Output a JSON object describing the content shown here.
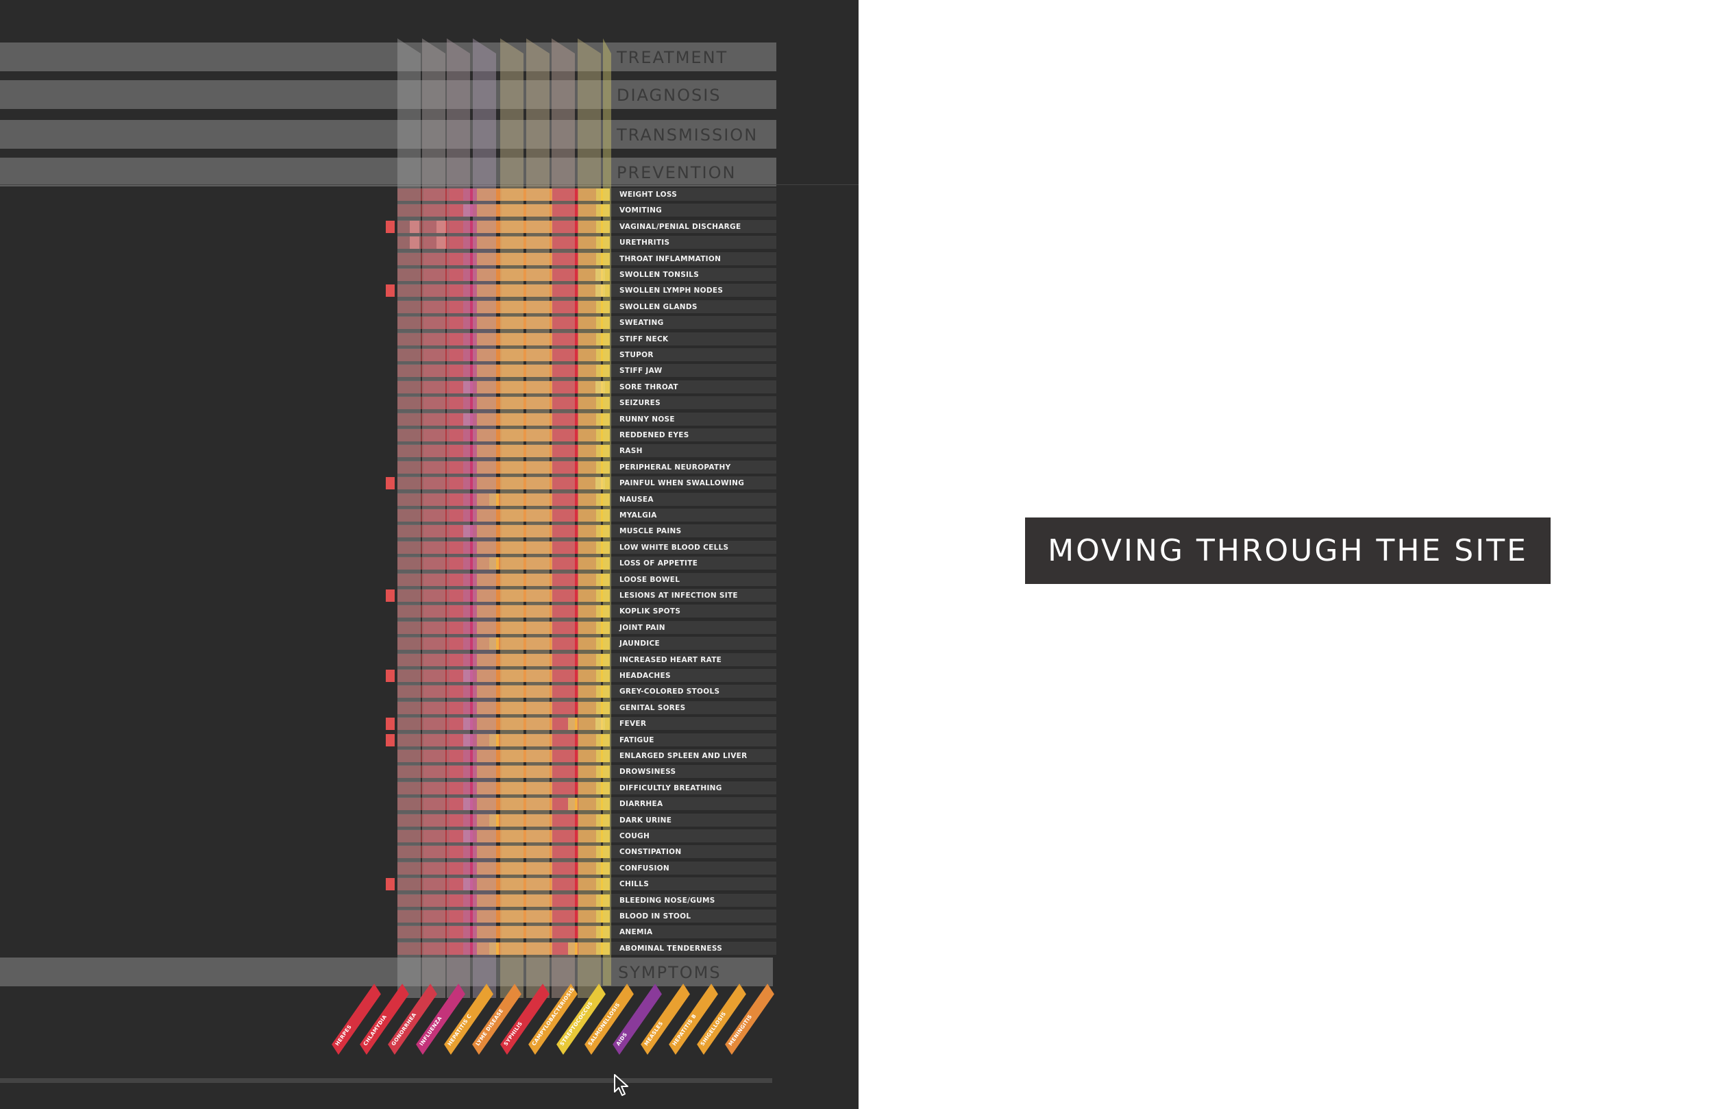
{
  "categories": [
    "TREATMENT",
    "DIAGNOSIS",
    "TRANSMISSION",
    "PREVENTION"
  ],
  "symptoms_heading": "SYMPTOMS",
  "symptoms": [
    "WEIGHT LOSS",
    "VOMITING",
    "VAGINAL/PENIAL DISCHARGE",
    "URETHRITIS",
    "THROAT INFLAMMATION",
    "SWOLLEN TONSILS",
    "SWOLLEN LYMPH NODES",
    "SWOLLEN GLANDS",
    "SWEATING",
    "STIFF NECK",
    "STUPOR",
    "STIFF JAW",
    "SORE THROAT",
    "SEIZURES",
    "RUNNY NOSE",
    "REDDENED EYES",
    "RASH",
    "PERIPHERAL NEUROPATHY",
    "PAINFUL WHEN SWALLOWING",
    "NAUSEA",
    "MYALGIA",
    "MUSCLE PAINS",
    "LOW WHITE BLOOD CELLS",
    "LOSS OF APPETITE",
    "LOOSE BOWEL",
    "LESIONS AT INFECTION SITE",
    "KOPLIK SPOTS",
    "JOINT PAIN",
    "JAUNDICE",
    "INCREASED HEART RATE",
    "HEADACHES",
    "GREY-COLORED STOOLS",
    "GENITAL SORES",
    "FEVER",
    "FATIGUE",
    "ENLARGED SPLEEN AND LIVER",
    "DROWSINESS",
    "DIFFICULTLY BREATHING",
    "DIARRHEA",
    "DARK URINE",
    "COUGH",
    "CONSTIPATION",
    "CONFUSION",
    "CHILLS",
    "BLEEDING NOSE/GUMS",
    "BLOOD IN STOOL",
    "ANEMIA",
    "ABOMINAL TENDERNESS"
  ],
  "diseases": [
    {
      "name": "HERPES",
      "color": "#d8303f"
    },
    {
      "name": "CHLAMYDIA",
      "color": "#d8303f"
    },
    {
      "name": "GONORRHEA",
      "color": "#d23a49"
    },
    {
      "name": "INFLUENZA",
      "color": "#c4337a"
    },
    {
      "name": "HEPATITIS C",
      "color": "#e9a030"
    },
    {
      "name": "LYME DISEASE",
      "color": "#e5893a"
    },
    {
      "name": "SYPHILIS",
      "color": "#d8303f"
    },
    {
      "name": "CAMPYLOBACTERIOSIS",
      "color": "#e9a030"
    },
    {
      "name": "STREPTOCOCCUS",
      "color": "#e8c838"
    },
    {
      "name": "SALMONELLOSIS",
      "color": "#e9a030"
    },
    {
      "name": "AIDS",
      "color": "#8a3a9a"
    },
    {
      "name": "MEASLES",
      "color": "#e9a030"
    },
    {
      "name": "HEPATITIS B",
      "color": "#e9a030"
    },
    {
      "name": "SHIGELLOSIS",
      "color": "#e9a030"
    },
    {
      "name": "MENINGITIS",
      "color": "#e5893a"
    }
  ],
  "band_colors": [
    "#8e3a3c",
    "#b33a42",
    "#d8303f",
    "#c83a6f",
    "#e58a3f",
    "#ea9848",
    "#d8303f",
    "#e09040",
    "#f2c840"
  ],
  "banner": {
    "title": "MOVING THROUGH THE SITE"
  }
}
